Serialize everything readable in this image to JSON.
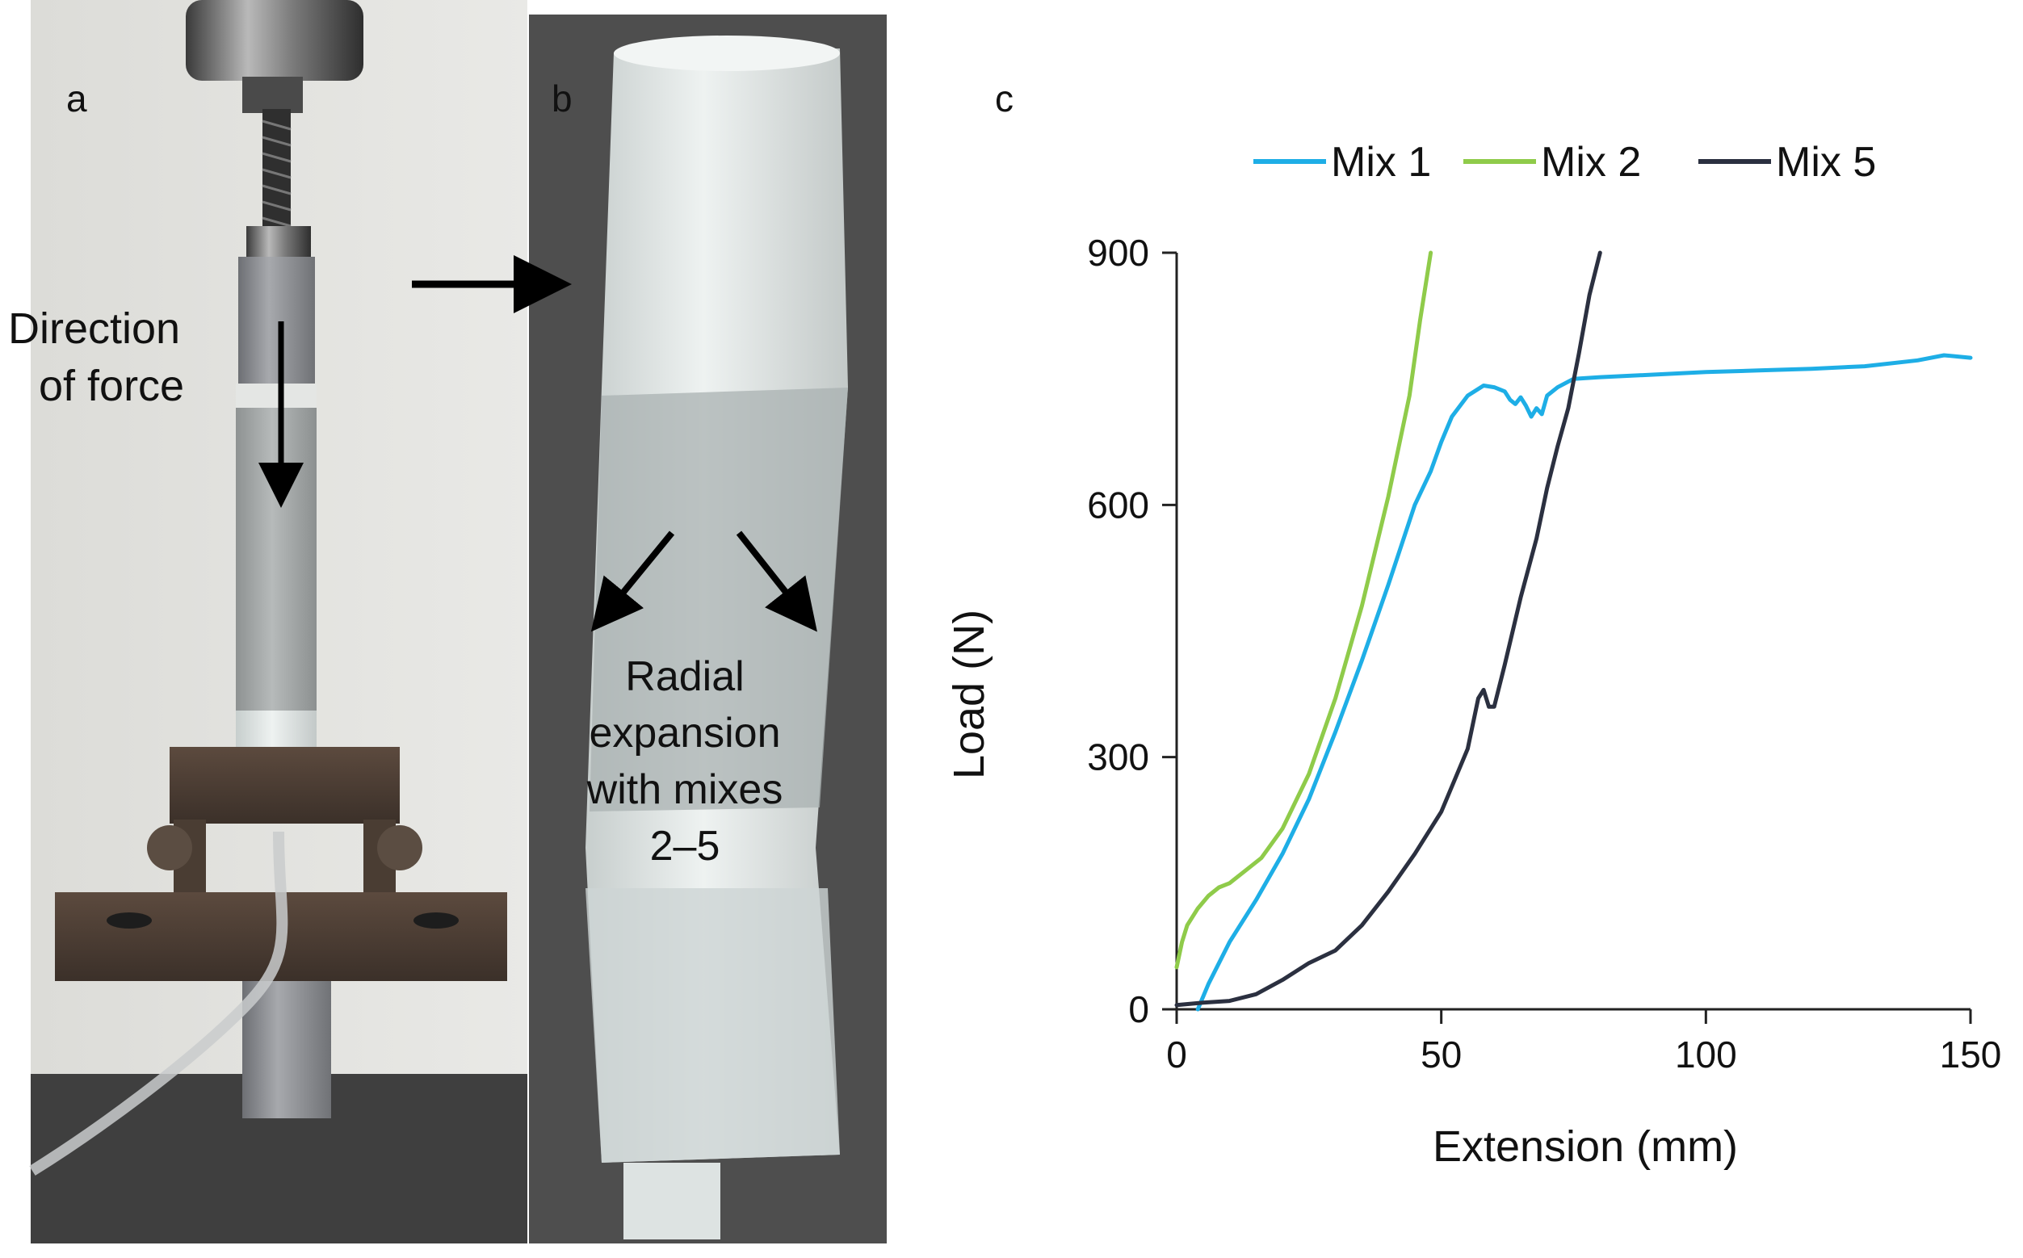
{
  "panel_a": {
    "letter": "a",
    "annotation_line1": "Direction",
    "annotation_line2": "of force"
  },
  "panel_b": {
    "letter": "b",
    "annotation_lines": [
      "Radial",
      "expansion",
      "with mixes",
      "2–5"
    ]
  },
  "panel_c": {
    "letter": "c"
  },
  "colors": {
    "mix1": "#1eaee6",
    "mix2": "#8fcb4a",
    "mix5": "#2b3040",
    "axis": "#222222"
  },
  "chart_data": {
    "type": "line",
    "xlabel": "Extension (mm)",
    "ylabel": "Load (N)",
    "xlim": [
      0,
      150
    ],
    "ylim": [
      0,
      900
    ],
    "xticks": [
      0,
      50,
      100,
      150
    ],
    "yticks": [
      0,
      300,
      600,
      900
    ],
    "grid": false,
    "legend_position": "top",
    "series": [
      {
        "name": "Mix 1",
        "x": [
          4,
          6,
          10,
          15,
          20,
          25,
          30,
          35,
          40,
          45,
          48,
          50,
          52,
          55,
          58,
          60,
          62,
          63,
          64,
          65,
          66,
          67,
          68,
          69,
          70,
          72,
          75,
          80,
          90,
          100,
          110,
          120,
          130,
          140,
          145,
          150
        ],
        "y": [
          0,
          30,
          80,
          130,
          185,
          250,
          330,
          415,
          505,
          600,
          640,
          675,
          705,
          730,
          742,
          740,
          735,
          725,
          720,
          728,
          718,
          705,
          715,
          708,
          730,
          740,
          750,
          752,
          755,
          758,
          760,
          762,
          765,
          772,
          778,
          775
        ]
      },
      {
        "name": "Mix 2",
        "x": [
          0,
          1,
          2,
          4,
          6,
          8,
          10,
          13,
          16,
          20,
          25,
          30,
          35,
          40,
          44,
          46,
          48
        ],
        "y": [
          50,
          80,
          100,
          120,
          135,
          145,
          150,
          165,
          180,
          215,
          280,
          370,
          480,
          610,
          730,
          820,
          900
        ]
      },
      {
        "name": "Mix 5",
        "x": [
          0,
          5,
          10,
          15,
          20,
          25,
          30,
          35,
          40,
          45,
          50,
          55,
          57,
          58,
          59,
          60,
          62,
          65,
          68,
          70,
          72,
          74,
          76,
          78,
          80
        ],
        "y": [
          5,
          8,
          10,
          18,
          35,
          55,
          70,
          100,
          140,
          185,
          235,
          310,
          370,
          380,
          360,
          360,
          410,
          490,
          560,
          620,
          670,
          715,
          780,
          850,
          900
        ]
      }
    ]
  }
}
